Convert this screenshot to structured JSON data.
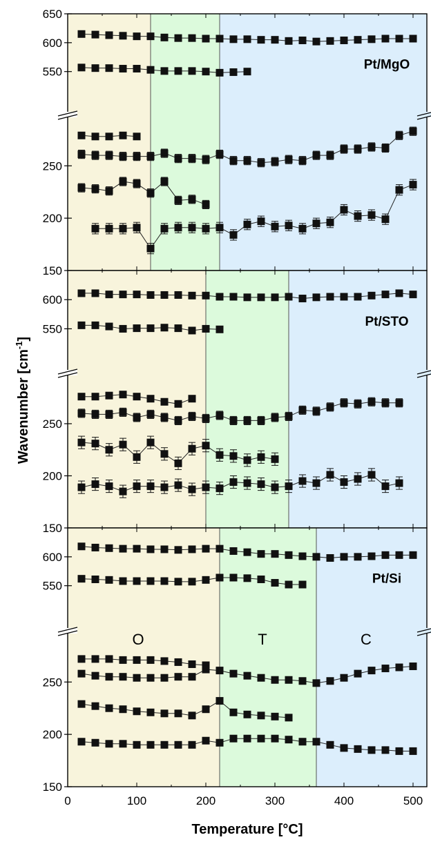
{
  "chart_data": {
    "type": "scatter",
    "xlabel": "Temperature [°C]",
    "ylabel": "Wavenumber [cm-1]",
    "ylabel_main": "Wavenumber [cm",
    "ylabel_sup": "-1",
    "ylabel_end": "]",
    "xlim": [
      0,
      520
    ],
    "x_ticks": [
      "0",
      "100",
      "200",
      "300",
      "400",
      "500"
    ],
    "y_break": true,
    "colors": {
      "O": "#f8f4dc",
      "T": "#dcfadc",
      "C": "#dceefc",
      "marker": "#111111"
    },
    "panels": [
      {
        "name": "Pt/MgO",
        "upper_ylim": [
          515,
          650
        ],
        "lower_ylim": [
          150,
          295
        ],
        "upper_ticks": [
          "650",
          "600",
          "550"
        ],
        "lower_ticks": [
          "250",
          "200",
          "150"
        ],
        "phases": [
          {
            "label": "",
            "color_key": "O",
            "from": 0,
            "to": 120
          },
          {
            "label": "",
            "color_key": "T",
            "from": 120,
            "to": 220
          },
          {
            "label": "",
            "color_key": "C",
            "from": 220,
            "to": 520
          }
        ],
        "series": [
          {
            "part": "upper",
            "x": [
              20,
              40,
              60,
              80,
              100,
              120,
              140,
              160,
              180,
              200,
              220,
              240,
              260,
              280,
              300,
              320,
              340,
              360,
              380,
              400,
              420,
              440,
              460,
              480,
              500
            ],
            "y": [
              615,
              614,
              613,
              612,
              611,
              611,
              609,
              608,
              608,
              607,
              607,
              606,
              606,
              605,
              605,
              603,
              604,
              602,
              603,
              604,
              605,
              606,
              607,
              607,
              607
            ],
            "err": 3
          },
          {
            "part": "upper",
            "x": [
              20,
              40,
              60,
              80,
              100,
              120,
              140,
              160,
              180,
              200,
              220,
              240,
              260
            ],
            "y": [
              557,
              556,
              556,
              555,
              555,
              553,
              551,
              551,
              551,
              550,
              548,
              549,
              550
            ],
            "err": 3
          },
          {
            "part": "lower",
            "x": [
              20,
              40,
              60,
              80,
              100
            ],
            "y": [
              279,
              278,
              278,
              279,
              278
            ],
            "err": 3
          },
          {
            "part": "lower",
            "x": [
              20,
              40,
              60,
              80,
              100,
              120,
              140,
              160,
              180,
              200,
              220,
              240,
              260,
              280,
              300,
              320,
              340,
              360,
              380,
              400,
              420,
              440,
              460,
              480,
              500
            ],
            "y": [
              261,
              260,
              260,
              259,
              259,
              259,
              262,
              257,
              257,
              256,
              261,
              255,
              255,
              253,
              254,
              256,
              255,
              260,
              260,
              266,
              266,
              268,
              267,
              279,
              283
            ],
            "err": 4
          },
          {
            "part": "lower",
            "x": [
              20,
              40,
              60,
              80,
              100,
              120,
              140,
              160,
              180,
              200
            ],
            "y": [
              229,
              228,
              226,
              235,
              233,
              224,
              235,
              217,
              218,
              213
            ],
            "err": 4
          },
          {
            "part": "lower",
            "x": [
              40,
              60,
              80,
              100,
              120,
              140,
              160,
              180,
              200,
              220,
              240,
              260,
              280,
              300,
              320,
              340,
              360,
              380,
              400,
              420,
              440,
              460,
              480,
              500
            ],
            "y": [
              190,
              190,
              190,
              191,
              171,
              190,
              191,
              191,
              190,
              191,
              184,
              194,
              197,
              192,
              193,
              190,
              195,
              196,
              208,
              202,
              203,
              199,
              227,
              232
            ],
            "err": 5
          }
        ]
      },
      {
        "name": "Pt/STO",
        "upper_ylim": [
          515,
          650
        ],
        "lower_ylim": [
          150,
          295
        ],
        "upper_ticks": [
          "600",
          "550"
        ],
        "lower_ticks": [
          "250",
          "200",
          "150"
        ],
        "phases": [
          {
            "label": "",
            "color_key": "O",
            "from": 0,
            "to": 200
          },
          {
            "label": "",
            "color_key": "T",
            "from": 200,
            "to": 320
          },
          {
            "label": "",
            "color_key": "C",
            "from": 320,
            "to": 520
          }
        ],
        "series": [
          {
            "part": "upper",
            "x": [
              20,
              40,
              60,
              80,
              100,
              120,
              140,
              160,
              180,
              200,
              220,
              240,
              260,
              280,
              300,
              320,
              340,
              360,
              380,
              400,
              420,
              440,
              460,
              480,
              500
            ],
            "y": [
              611,
              611,
              609,
              609,
              609,
              608,
              608,
              608,
              607,
              607,
              605,
              605,
              604,
              604,
              604,
              605,
              602,
              604,
              605,
              605,
              605,
              607,
              609,
              611,
              609
            ],
            "err": 3
          },
          {
            "part": "upper",
            "x": [
              20,
              40,
              60,
              80,
              100,
              120,
              140,
              160,
              180,
              200,
              220
            ],
            "y": [
              556,
              556,
              554,
              550,
              551,
              551,
              552,
              551,
              547,
              550,
              549
            ],
            "err": 3
          },
          {
            "part": "lower",
            "x": [
              20,
              40,
              60,
              80,
              100,
              120,
              140,
              160,
              180
            ],
            "y": [
              276,
              276,
              277,
              278,
              276,
              274,
              271,
              269,
              274
            ],
            "err": 3
          },
          {
            "part": "lower",
            "x": [
              20,
              40,
              60,
              80,
              100,
              120,
              140,
              160,
              180,
              200,
              220,
              240,
              260,
              280,
              300,
              320,
              340,
              360,
              380,
              400,
              420,
              440,
              460,
              480
            ],
            "y": [
              260,
              259,
              259,
              261,
              256,
              259,
              256,
              253,
              257,
              255,
              258,
              253,
              253,
              253,
              256,
              257,
              263,
              262,
              266,
              270,
              269,
              271,
              270,
              270
            ],
            "err": 4
          },
          {
            "part": "lower",
            "x": [
              20,
              40,
              60,
              80,
              100,
              120,
              140,
              160,
              180,
              200,
              220,
              240,
              260,
              280,
              300
            ],
            "y": [
              232,
              231,
              225,
              230,
              218,
              232,
              221,
              212,
              226,
              229,
              220,
              219,
              215,
              218,
              216
            ],
            "err": 6
          },
          {
            "part": "lower",
            "x": [
              20,
              40,
              60,
              80,
              100,
              120,
              140,
              160,
              180,
              200,
              220,
              240,
              260,
              280,
              300,
              320,
              340,
              360,
              380,
              400,
              420,
              440,
              460,
              480
            ],
            "y": [
              189,
              192,
              190,
              185,
              190,
              190,
              189,
              191,
              187,
              189,
              188,
              194,
              193,
              192,
              189,
              190,
              195,
              193,
              201,
              194,
              197,
              201,
              190,
              193
            ],
            "err": 6
          }
        ]
      },
      {
        "name": "Pt/Si",
        "upper_ylim": [
          515,
          650
        ],
        "lower_ylim": [
          150,
          295
        ],
        "upper_ticks": [
          "600",
          "550"
        ],
        "lower_ticks": [
          "250",
          "200",
          "150"
        ],
        "phases": [
          {
            "label": "O",
            "color_key": "O",
            "from": 0,
            "to": 220
          },
          {
            "label": "T",
            "color_key": "T",
            "from": 220,
            "to": 360
          },
          {
            "label": "C",
            "color_key": "C",
            "from": 360,
            "to": 520
          }
        ],
        "series": [
          {
            "part": "upper",
            "x": [
              20,
              40,
              60,
              80,
              100,
              120,
              140,
              160,
              180,
              200,
              220,
              240,
              260,
              280,
              300,
              320,
              340,
              360,
              380,
              400,
              420,
              440,
              460,
              480,
              500
            ],
            "y": [
              618,
              616,
              615,
              614,
              614,
              613,
              613,
              612,
              613,
              614,
              614,
              610,
              608,
              605,
              605,
              603,
              601,
              600,
              598,
              600,
              600,
              601,
              603,
              603,
              603
            ],
            "err": 3
          },
          {
            "part": "upper",
            "x": [
              20,
              40,
              60,
              80,
              100,
              120,
              140,
              160,
              180,
              200,
              220,
              240,
              260,
              280,
              300,
              320,
              340
            ],
            "y": [
              562,
              561,
              560,
              558,
              558,
              558,
              558,
              557,
              557,
              560,
              564,
              564,
              563,
              561,
              555,
              552,
              552
            ],
            "err": 3
          },
          {
            "part": "lower",
            "x": [
              20,
              40,
              60,
              80,
              100,
              120,
              140,
              160,
              180,
              200
            ],
            "y": [
              272,
              272,
              272,
              271,
              271,
              271,
              270,
              269,
              267,
              266
            ],
            "err": 3
          },
          {
            "part": "lower",
            "x": [
              20,
              40,
              60,
              80,
              100,
              120,
              140,
              160,
              180,
              200,
              220,
              240,
              260,
              280,
              300,
              320,
              340,
              360,
              380,
              400,
              420,
              440,
              460,
              480,
              500
            ],
            "y": [
              258,
              256,
              255,
              255,
              254,
              254,
              254,
              255,
              255,
              262,
              261,
              258,
              256,
              254,
              252,
              252,
              251,
              249,
              251,
              254,
              258,
              261,
              263,
              264,
              265
            ],
            "err": 3
          },
          {
            "part": "lower",
            "x": [
              20,
              40,
              60,
              80,
              100,
              120,
              140,
              160,
              180,
              200,
              220,
              240,
              260,
              280,
              300,
              320
            ],
            "y": [
              229,
              227,
              225,
              224,
              222,
              221,
              220,
              220,
              218,
              224,
              232,
              221,
              219,
              218,
              217,
              216
            ],
            "err": 3
          },
          {
            "part": "lower",
            "x": [
              20,
              40,
              60,
              80,
              100,
              120,
              140,
              160,
              180,
              200,
              220,
              240,
              260,
              280,
              300,
              320,
              340,
              360,
              380,
              400,
              420,
              440,
              460,
              480,
              500
            ],
            "y": [
              193,
              192,
              191,
              191,
              190,
              190,
              190,
              190,
              190,
              194,
              192,
              196,
              196,
              196,
              196,
              195,
              193,
              193,
              190,
              187,
              186,
              185,
              185,
              184,
              184
            ],
            "err": 3
          }
        ]
      }
    ]
  }
}
